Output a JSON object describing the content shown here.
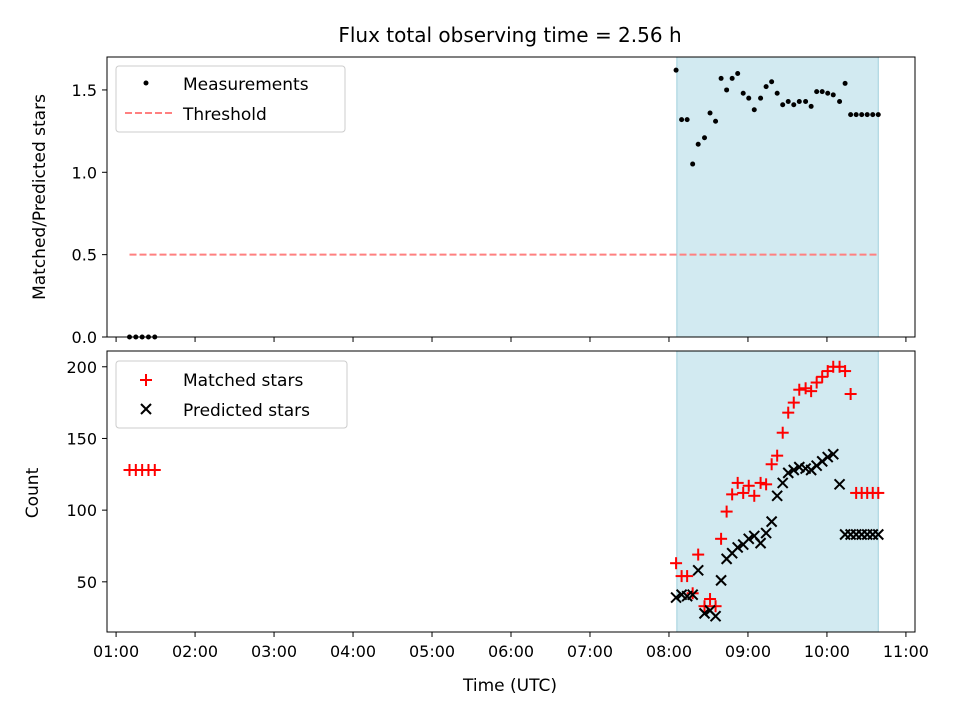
{
  "figure": {
    "title": "Flux total observing time = 2.56 h",
    "shade_color": "#add8e6",
    "threshold_color": "#ff8080",
    "matched_color": "#ff0000",
    "predicted_color": "#000000"
  },
  "chart_data": [
    {
      "type": "scatter",
      "title": "Flux total observing time = 2.56 h",
      "xlabel": "",
      "ylabel": "Matched/Predicted stars",
      "xlim": [
        0.885,
        11.115
      ],
      "ylim": [
        0,
        1.7
      ],
      "xticks": [
        1,
        2,
        3,
        4,
        5,
        6,
        7,
        8,
        9,
        10,
        11
      ],
      "yticks": [
        0,
        0.5,
        1.0,
        1.5
      ],
      "ytick_labels": [
        "0.0",
        "0.5",
        "1.0",
        "1.5"
      ],
      "legend": "top-left",
      "shaded_x": [
        8.1,
        10.65
      ],
      "series": [
        {
          "name": "Measurements",
          "kind": "dots",
          "x": [
            1.17,
            1.25,
            1.33,
            1.41,
            1.49,
            8.09,
            8.16,
            8.23,
            8.3,
            8.37,
            8.45,
            8.52,
            8.59,
            8.66,
            8.73,
            8.8,
            8.87,
            8.94,
            9.01,
            9.08,
            9.16,
            9.23,
            9.3,
            9.37,
            9.44,
            9.51,
            9.58,
            9.65,
            9.73,
            9.8,
            9.87,
            9.94,
            10.01,
            10.08,
            10.16,
            10.23,
            10.3,
            10.37,
            10.44,
            10.51,
            10.58,
            10.65
          ],
          "y": [
            0.0,
            0.0,
            0.0,
            0.0,
            0.0,
            1.62,
            1.32,
            1.32,
            1.05,
            1.17,
            1.21,
            1.36,
            1.31,
            1.57,
            1.5,
            1.57,
            1.6,
            1.48,
            1.45,
            1.38,
            1.45,
            1.52,
            1.55,
            1.48,
            1.41,
            1.43,
            1.41,
            1.43,
            1.43,
            1.4,
            1.49,
            1.49,
            1.48,
            1.47,
            1.43,
            1.54,
            1.35,
            1.35,
            1.35,
            1.35,
            1.35,
            1.35
          ]
        },
        {
          "name": "Threshold",
          "kind": "dashed-line",
          "x": [
            1.17,
            10.65
          ],
          "y": [
            0.5,
            0.5
          ]
        }
      ]
    },
    {
      "type": "scatter",
      "xlabel": "Time (UTC)",
      "ylabel": "Count",
      "xlim": [
        0.885,
        11.115
      ],
      "ylim": [
        15,
        211
      ],
      "xticks": [
        1,
        2,
        3,
        4,
        5,
        6,
        7,
        8,
        9,
        10,
        11
      ],
      "xtick_labels": [
        "01:00",
        "02:00",
        "03:00",
        "04:00",
        "05:00",
        "06:00",
        "07:00",
        "08:00",
        "09:00",
        "10:00",
        "11:00"
      ],
      "yticks": [
        50,
        100,
        150,
        200
      ],
      "ytick_labels": [
        "50",
        "100",
        "150",
        "200"
      ],
      "legend": "top-left",
      "shaded_x": [
        8.1,
        10.65
      ],
      "series": [
        {
          "name": "Matched stars",
          "kind": "plus",
          "x": [
            1.17,
            1.25,
            1.33,
            1.41,
            1.49,
            8.09,
            8.16,
            8.23,
            8.3,
            8.37,
            8.45,
            8.52,
            8.59,
            8.66,
            8.73,
            8.8,
            8.87,
            8.94,
            9.01,
            9.08,
            9.16,
            9.23,
            9.3,
            9.37,
            9.44,
            9.51,
            9.58,
            9.65,
            9.73,
            9.8,
            9.87,
            9.94,
            10.01,
            10.08,
            10.16,
            10.23,
            10.3,
            10.37,
            10.44,
            10.51,
            10.58,
            10.65
          ],
          "y": [
            128,
            128,
            128,
            128,
            128,
            63,
            54,
            54,
            42,
            69,
            33,
            38,
            33,
            80,
            99,
            111,
            119,
            112,
            117,
            110,
            119,
            118,
            132,
            138,
            154,
            168,
            175,
            184,
            185,
            183,
            189,
            193,
            197,
            200,
            200,
            197,
            181,
            112,
            112,
            112,
            112,
            112
          ]
        },
        {
          "name": "Predicted stars",
          "kind": "x",
          "x": [
            8.09,
            8.16,
            8.23,
            8.3,
            8.37,
            8.45,
            8.52,
            8.59,
            8.66,
            8.73,
            8.8,
            8.87,
            8.94,
            9.01,
            9.08,
            9.16,
            9.23,
            9.3,
            9.37,
            9.44,
            9.51,
            9.58,
            9.65,
            9.73,
            9.8,
            9.87,
            9.94,
            10.01,
            10.08,
            10.16,
            10.23,
            10.3,
            10.37,
            10.44,
            10.51,
            10.58,
            10.65
          ],
          "y": [
            39,
            41,
            40,
            41,
            58,
            28,
            30,
            26,
            51,
            66,
            70,
            74,
            76,
            80,
            82,
            77,
            84,
            92,
            110,
            119,
            126,
            128,
            130,
            129,
            128,
            131,
            134,
            137,
            139,
            118,
            83,
            83,
            83,
            83,
            83,
            83,
            83
          ]
        }
      ]
    }
  ]
}
